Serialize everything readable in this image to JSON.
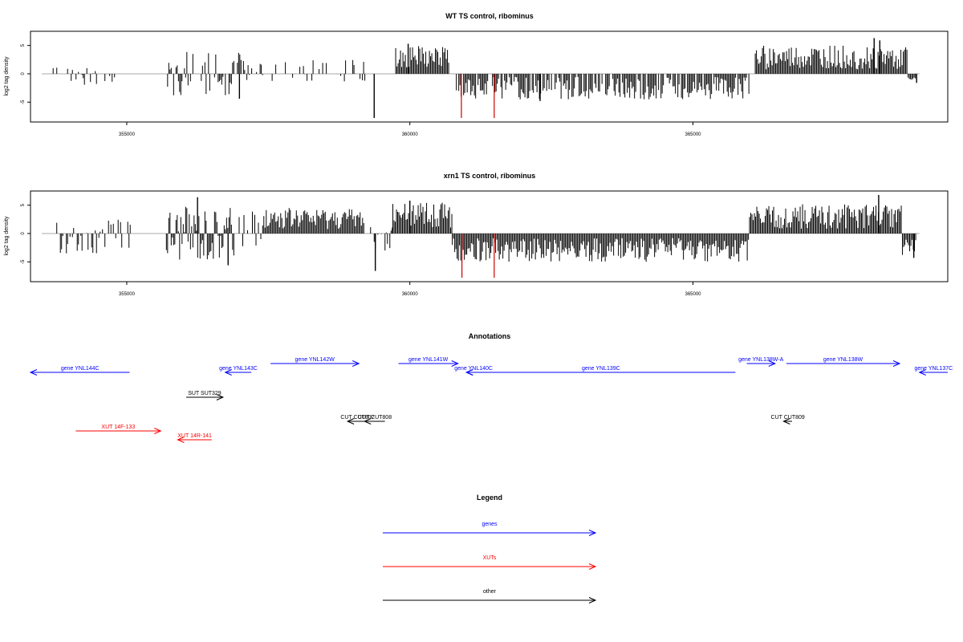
{
  "chart_data": [
    {
      "type": "bar",
      "title": "WT TS control, ribominus",
      "ylabel": "log2 tag density",
      "xlim": [
        353300,
        369500
      ],
      "ylim": [
        -8.5,
        7.5
      ],
      "xticks": [
        355000,
        360000,
        365000
      ],
      "xtick_labels": [
        "355000",
        "360000",
        "365000"
      ],
      "yticks": [
        -5,
        0,
        5
      ],
      "ytick_labels": [
        "-5",
        "0",
        "5"
      ],
      "baseline_range": [
        353500,
        369000
      ],
      "bar_color": "#000000",
      "highlight_color": "#cc0000",
      "segments": [
        {
          "from": 353700,
          "to": 354900,
          "density": 0.35,
          "lo": -2.0,
          "hi": 1.2,
          "bias": -0.8,
          "seed": 3
        },
        {
          "from": 355700,
          "to": 357100,
          "density": 0.55,
          "lo": -3.5,
          "hi": 2.5,
          "bias": 0.0,
          "seed": 7
        },
        {
          "from": 357100,
          "to": 359300,
          "density": 0.35,
          "lo": -1.5,
          "hi": 2.5,
          "bias": 0.5,
          "seed": 11
        },
        {
          "from": 359750,
          "to": 360700,
          "density": 1.0,
          "lo": 0.8,
          "hi": 5.0,
          "bias": 1.0,
          "seed": 13
        },
        {
          "from": 360800,
          "to": 366000,
          "density": 0.8,
          "lo": -4.5,
          "hi": -0.5,
          "bias": -1.0,
          "seed": 17
        },
        {
          "from": 366100,
          "to": 368800,
          "density": 1.0,
          "lo": 0.8,
          "hi": 5.0,
          "bias": 1.0,
          "seed": 19
        },
        {
          "from": 368800,
          "to": 368950,
          "density": 1.0,
          "lo": -1.5,
          "hi": -0.5,
          "bias": -1.0,
          "seed": 23
        }
      ],
      "spikes": [
        {
          "x": 356990,
          "y": -4.4
        },
        {
          "x": 359370,
          "y": -7.8
        },
        {
          "x": 359970,
          "y": 5.3
        },
        {
          "x": 362300,
          "y": -4.8
        },
        {
          "x": 368200,
          "y": 6.3
        },
        {
          "x": 368300,
          "y": 5.9
        },
        {
          "x": 368950,
          "y": -1.6
        }
      ],
      "highlights": [
        {
          "x": 360910,
          "y": -7.8
        },
        {
          "x": 361490,
          "y": -7.8
        }
      ]
    },
    {
      "type": "bar",
      "title": "xrn1 TS control, ribominus",
      "ylabel": "log2 tag density",
      "xlim": [
        353300,
        369500
      ],
      "ylim": [
        -8.5,
        7.5
      ],
      "xticks": [
        355000,
        360000,
        365000
      ],
      "xtick_labels": [
        "355000",
        "360000",
        "365000"
      ],
      "yticks": [
        -5,
        0,
        5
      ],
      "ytick_labels": [
        "-5",
        "0",
        "5"
      ],
      "baseline_range": [
        353500,
        369000
      ],
      "bar_color": "#000000",
      "highlight_color": "#cc0000",
      "segments": [
        {
          "from": 353700,
          "to": 355100,
          "density": 0.6,
          "lo": -3.5,
          "hi": 2.5,
          "bias": -0.5,
          "seed": 29
        },
        {
          "from": 355700,
          "to": 356900,
          "density": 1.0,
          "lo": -5.0,
          "hi": 5.0,
          "bias": 0.3,
          "seed": 31
        },
        {
          "from": 356900,
          "to": 357400,
          "density": 0.6,
          "lo": -3.0,
          "hi": 3.5,
          "bias": 0.0,
          "seed": 37
        },
        {
          "from": 357400,
          "to": 359200,
          "density": 1.0,
          "lo": 0.8,
          "hi": 4.5,
          "bias": 1.0,
          "seed": 41
        },
        {
          "from": 359200,
          "to": 359700,
          "density": 0.5,
          "lo": -3.0,
          "hi": 1.5,
          "bias": -0.5,
          "seed": 43
        },
        {
          "from": 359700,
          "to": 360750,
          "density": 1.0,
          "lo": 1.0,
          "hi": 5.5,
          "bias": 1.0,
          "seed": 47
        },
        {
          "from": 360750,
          "to": 366000,
          "density": 1.0,
          "lo": -5.0,
          "hi": -0.8,
          "bias": -1.0,
          "seed": 53
        },
        {
          "from": 366000,
          "to": 368700,
          "density": 1.0,
          "lo": 0.8,
          "hi": 5.2,
          "bias": 1.0,
          "seed": 59
        },
        {
          "from": 368700,
          "to": 368950,
          "density": 1.0,
          "lo": -4.0,
          "hi": -1.0,
          "bias": -1.0,
          "seed": 61
        }
      ],
      "spikes": [
        {
          "x": 356250,
          "y": 6.4
        },
        {
          "x": 356790,
          "y": -5.6
        },
        {
          "x": 359390,
          "y": -6.6
        },
        {
          "x": 360000,
          "y": 5.8
        },
        {
          "x": 368280,
          "y": 6.8
        },
        {
          "x": 368900,
          "y": -4.3
        }
      ],
      "highlights": [
        {
          "x": 360920,
          "y": -7.8
        },
        {
          "x": 361490,
          "y": -7.8
        }
      ]
    }
  ],
  "annotations": {
    "title": "Annotations",
    "features": [
      {
        "label": "gene YNL144C",
        "category": "genes",
        "start": 353300,
        "end": 355050,
        "dir": "left",
        "row": 2
      },
      {
        "label": "gene YNL143C",
        "category": "genes",
        "start": 356740,
        "end": 357200,
        "dir": "left",
        "row": 2
      },
      {
        "label": "gene YNL142W",
        "category": "genes",
        "start": 357540,
        "end": 359100,
        "dir": "right",
        "row": 1
      },
      {
        "label": "gene YNL141W",
        "category": "genes",
        "start": 359800,
        "end": 360850,
        "dir": "right",
        "row": 1
      },
      {
        "label": "gene YNL140C",
        "category": "genes",
        "start": 361000,
        "end": 361250,
        "dir": "left",
        "row": 2
      },
      {
        "label": "gene YNL139C",
        "category": "genes",
        "start": 361000,
        "end": 365750,
        "dir": "left",
        "row": 2
      },
      {
        "label": "gene YNL138W-A",
        "category": "genes",
        "start": 365950,
        "end": 366450,
        "dir": "right",
        "row": 1
      },
      {
        "label": "gene YNL138W",
        "category": "genes",
        "start": 366650,
        "end": 368650,
        "dir": "right",
        "row": 1
      },
      {
        "label": "gene YNL137C",
        "category": "genes",
        "start": 369000,
        "end": 369500,
        "dir": "left",
        "row": 2
      },
      {
        "label": "SUT SUT329",
        "category": "other",
        "start": 356050,
        "end": 356700,
        "dir": "right",
        "row": 3
      },
      {
        "label": "CUT CUT807",
        "category": "other",
        "start": 358900,
        "end": 359250,
        "dir": "left",
        "row": 4
      },
      {
        "label": "CUT CUT808",
        "category": "other",
        "start": 359200,
        "end": 359560,
        "dir": "left",
        "row": 4
      },
      {
        "label": "CUT CUT809",
        "category": "other",
        "start": 366600,
        "end": 366750,
        "dir": "left",
        "row": 4
      },
      {
        "label": "XUT 14F-133",
        "category": "XUTs",
        "start": 354100,
        "end": 355600,
        "dir": "right",
        "row": 5
      },
      {
        "label": "XUT 14R-141",
        "category": "XUTs",
        "start": 355900,
        "end": 356500,
        "dir": "left",
        "row": 6
      }
    ]
  },
  "legend": {
    "title": "Legend",
    "items": [
      {
        "label": "genes",
        "color": "#0000ff"
      },
      {
        "label": "XUTs",
        "color": "#ff0000"
      },
      {
        "label": "other",
        "color": "#000000"
      }
    ]
  },
  "colors": {
    "genes": "#0000ff",
    "XUTs": "#ff0000",
    "other": "#000000",
    "baseline": "#aaaaaa"
  }
}
